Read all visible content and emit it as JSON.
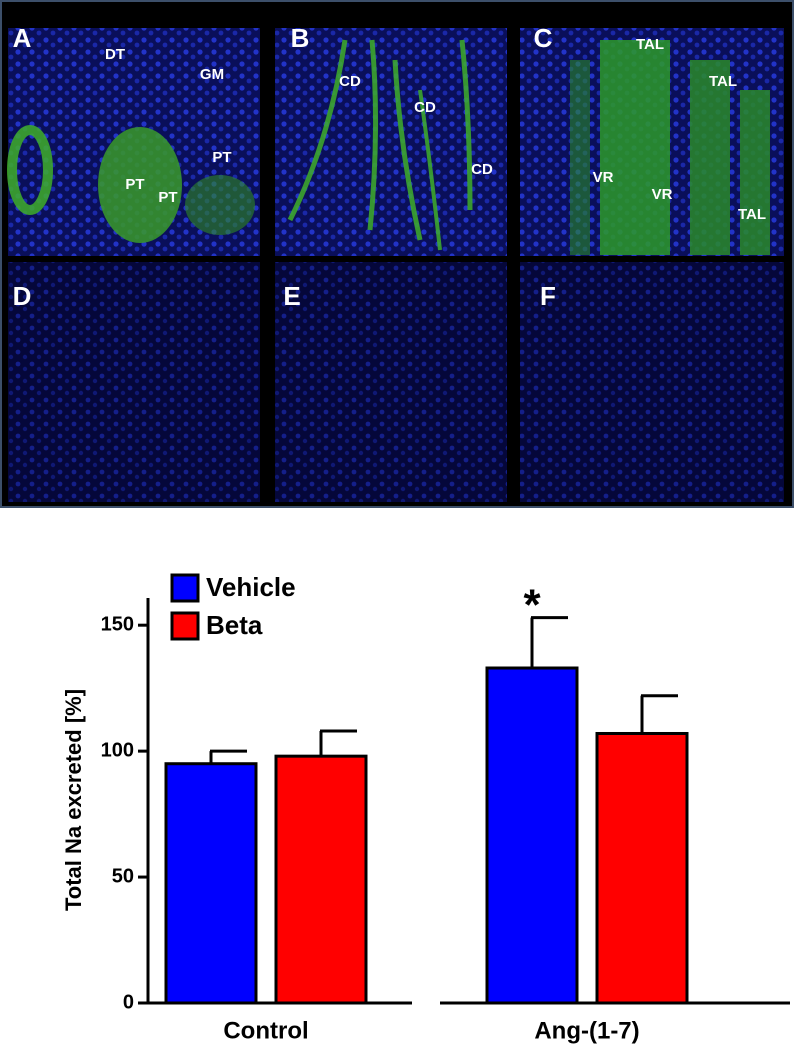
{
  "panels": [
    {
      "letter": "A",
      "labels": [
        "DT",
        "GM",
        "PT",
        "PT",
        "PT"
      ]
    },
    {
      "letter": "B",
      "labels": [
        "CD",
        "CD",
        "CD"
      ]
    },
    {
      "letter": "C",
      "labels": [
        "TAL",
        "TAL",
        "VR",
        "VR",
        "TAL"
      ]
    },
    {
      "letter": "D",
      "labels": []
    },
    {
      "letter": "E",
      "labels": []
    },
    {
      "letter": "F",
      "labels": []
    }
  ],
  "chart_data": {
    "type": "bar",
    "ylabel": "Total Na excreted [%]",
    "categories": [
      "Control",
      "Ang-(1-7)"
    ],
    "series": [
      {
        "name": "Vehicle",
        "color": "#0000ff",
        "values": [
          95,
          133
        ],
        "errors": [
          5,
          20
        ]
      },
      {
        "name": "Beta",
        "color": "#ff0000",
        "values": [
          98,
          107
        ],
        "errors": [
          10,
          15
        ]
      }
    ],
    "annotation": "*",
    "ylim": [
      0,
      160
    ],
    "yticks": [
      0,
      50,
      100,
      150
    ]
  }
}
